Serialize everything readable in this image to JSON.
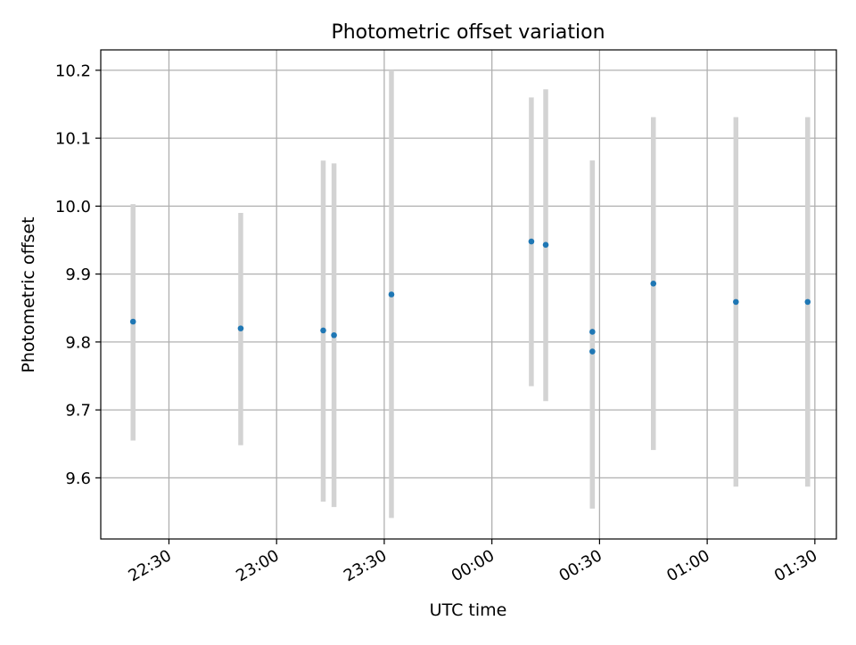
{
  "chart_data": {
    "type": "scatter",
    "title": "Photometric offset variation",
    "xlabel": "UTC time",
    "ylabel": "Photometric offset",
    "x_axis": {
      "kind": "time",
      "range": [
        "22:11",
        "01:36"
      ],
      "ticks": [
        "22:30",
        "23:00",
        "23:30",
        "00:00",
        "00:30",
        "01:00",
        "01:30"
      ],
      "tick_rotation_deg": 30
    },
    "y_axis": {
      "range": [
        9.51,
        10.23
      ],
      "ticks": [
        "9.6",
        "9.7",
        "9.8",
        "9.9",
        "10.0",
        "10.1",
        "10.2"
      ]
    },
    "grid": true,
    "legend": "none",
    "series": [
      {
        "points": [
          {
            "x": "22:20",
            "y": 9.83,
            "low": 9.655,
            "high": 10.003
          },
          {
            "x": "22:50",
            "y": 9.82,
            "low": 9.648,
            "high": 9.99
          },
          {
            "x": "23:13",
            "y": 9.817,
            "low": 9.565,
            "high": 10.067
          },
          {
            "x": "23:16",
            "y": 9.81,
            "low": 9.557,
            "high": 10.063
          },
          {
            "x": "23:32",
            "y": 9.87,
            "low": 9.541,
            "high": 10.2
          },
          {
            "x": "00:11",
            "y": 9.948,
            "low": 9.735,
            "high": 10.16
          },
          {
            "x": "00:15",
            "y": 9.943,
            "low": 9.713,
            "high": 10.172
          },
          {
            "x": "00:28",
            "y": 9.815,
            "low": 9.555,
            "high": 10.067
          },
          {
            "x": "00:28",
            "y": 9.786,
            "low": 9.555,
            "high": 10.067
          },
          {
            "x": "00:45",
            "y": 9.886,
            "low": 9.641,
            "high": 10.131
          },
          {
            "x": "01:08",
            "y": 9.859,
            "low": 9.587,
            "high": 10.131
          },
          {
            "x": "01:28",
            "y": 9.859,
            "low": 9.587,
            "high": 10.131
          }
        ]
      }
    ],
    "colors": {
      "points": "#1f77b4",
      "error_bars": "#d3d3d3",
      "grid": "#b0b0b0",
      "frame": "#000000"
    }
  }
}
